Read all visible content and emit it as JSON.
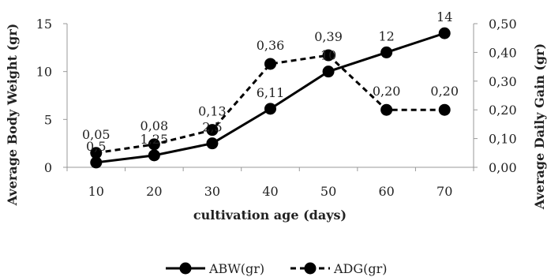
{
  "chart_data": {
    "type": "line",
    "categories": [
      "10",
      "20",
      "30",
      "40",
      "50",
      "60",
      "70"
    ],
    "x": [
      10,
      20,
      30,
      40,
      50,
      60,
      70
    ],
    "xlabel": "cultivation age (days)",
    "ylabel": "Average Body Weight (gr)",
    "y2label": "Average Daily Gain (gr)",
    "ylim": [
      0,
      15
    ],
    "y2lim": [
      0,
      0.5
    ],
    "yticks": [
      "0",
      "5",
      "10",
      "15"
    ],
    "y2ticks": [
      "0,00",
      "0,10",
      "0,20",
      "0,30",
      "0,40",
      "0,50"
    ],
    "grid": false,
    "legend_position": "bottom",
    "series": [
      {
        "name": "ABW(gr)",
        "axis": "left",
        "style": "solid",
        "color": "#000000",
        "values": [
          0.5,
          1.25,
          2.5,
          6.11,
          10,
          12,
          14
        ],
        "labels": [
          "0,5",
          "1,25",
          "2,5",
          "6,11",
          "10",
          "12",
          "14"
        ]
      },
      {
        "name": "ADG(gr)",
        "axis": "right",
        "style": "dashed",
        "color": "#000000",
        "values": [
          0.05,
          0.08,
          0.13,
          0.36,
          0.39,
          0.2,
          0.2
        ],
        "labels": [
          "0,05",
          "0,08",
          "0,13",
          "0,36",
          "0,39",
          "0,20",
          "0,20"
        ]
      }
    ]
  }
}
